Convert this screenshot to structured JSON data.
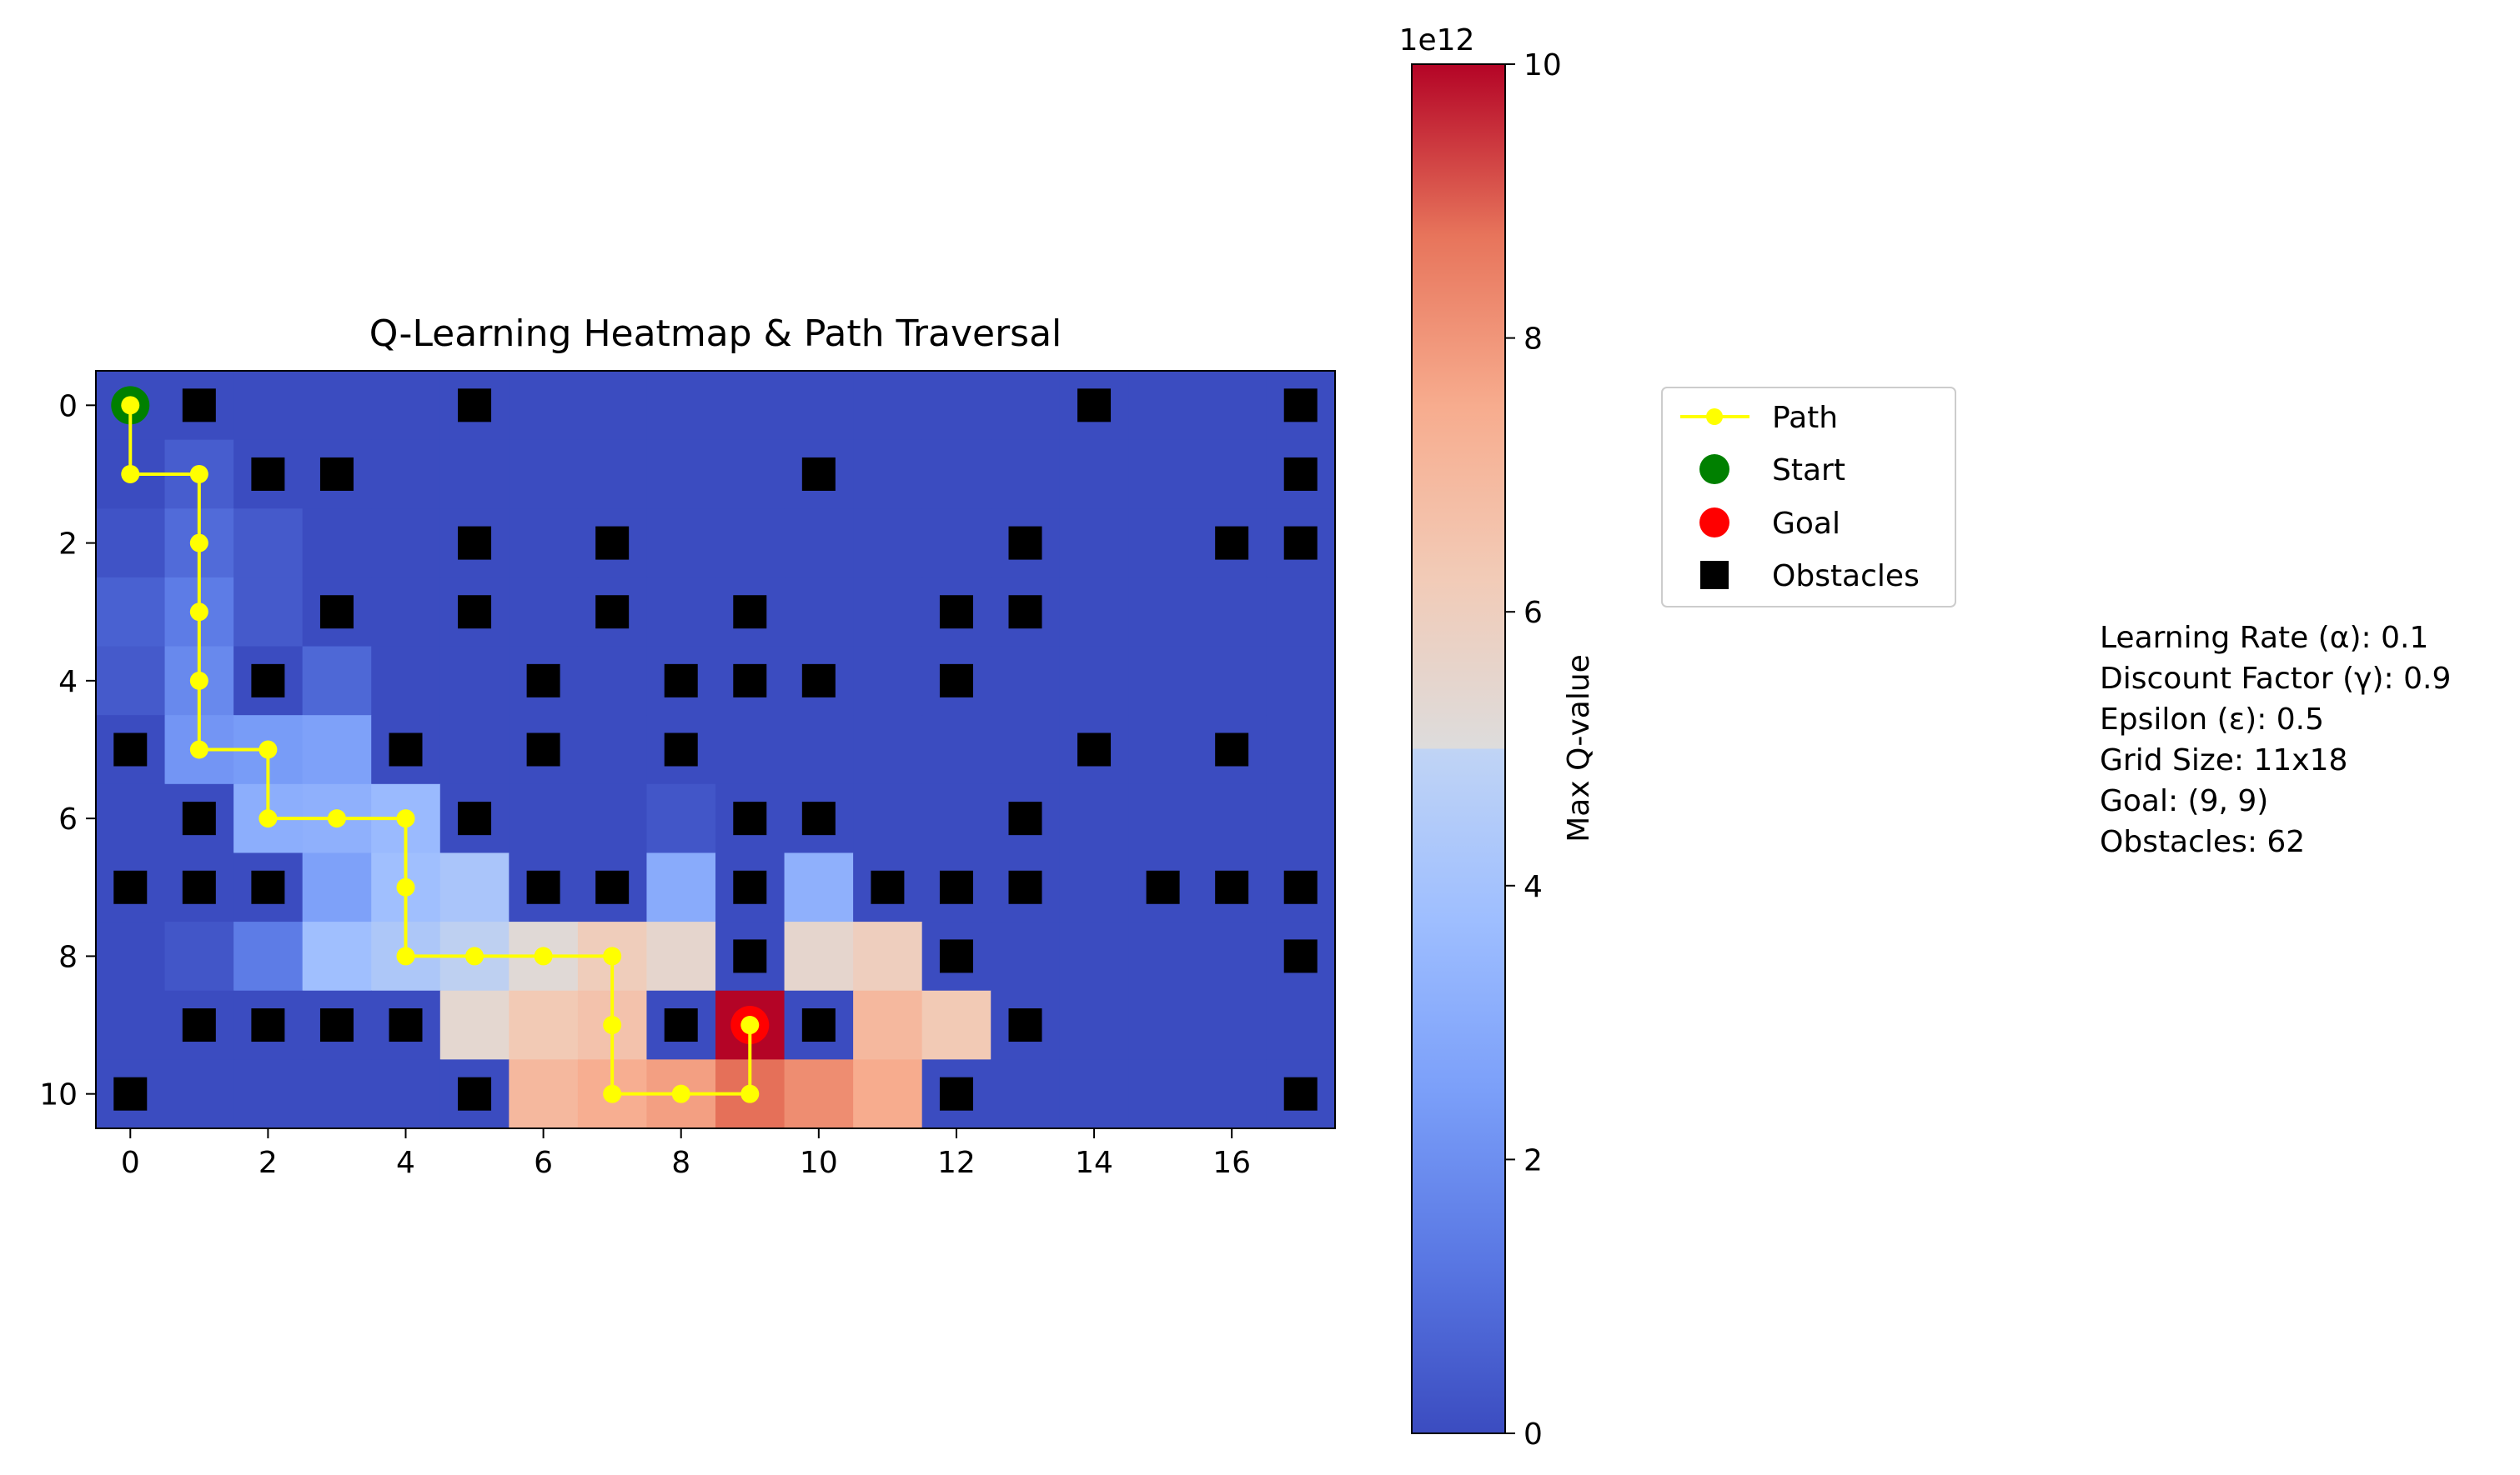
{
  "chart_data": {
    "type": "heatmap",
    "title": "Q-Learning Heatmap & Path Traversal",
    "rows": 11,
    "cols": 18,
    "x_ticks": [
      0,
      2,
      4,
      6,
      8,
      10,
      12,
      14,
      16
    ],
    "y_ticks": [
      0,
      2,
      4,
      6,
      8,
      10
    ],
    "colormap": "coolwarm",
    "colorbar": {
      "label": "Max Q-value",
      "exponent_label": "1e12",
      "min": 0,
      "max": 10,
      "ticks": [
        0,
        2,
        4,
        6,
        8,
        10
      ]
    },
    "q_values_e12": [
      [
        0,
        0,
        0,
        0,
        0,
        0,
        0,
        0,
        0,
        0,
        0,
        0,
        0,
        0,
        0,
        0,
        0,
        0
      ],
      [
        0,
        0.5,
        0,
        0,
        0,
        0,
        0,
        0,
        0,
        0,
        0,
        0,
        0,
        0,
        0,
        0,
        0,
        0
      ],
      [
        0.2,
        0.9,
        0.4,
        0,
        0,
        0,
        0,
        0,
        0,
        0,
        0,
        0,
        0,
        0,
        0,
        0,
        0,
        0
      ],
      [
        0.6,
        1.4,
        0.4,
        0,
        0,
        0,
        0,
        0,
        0,
        0,
        0,
        0,
        0,
        0,
        0,
        0,
        0,
        0
      ],
      [
        0.4,
        1.8,
        0,
        0.8,
        0,
        0,
        0,
        0,
        0,
        0,
        0,
        0,
        0,
        0,
        0,
        0,
        0,
        0
      ],
      [
        0,
        2.2,
        2.4,
        2.6,
        0,
        0,
        0,
        0,
        0,
        0,
        0,
        0,
        0,
        0,
        0,
        0,
        0,
        0
      ],
      [
        0,
        0,
        3.1,
        3.2,
        3.6,
        0,
        0,
        0,
        0.3,
        0,
        0,
        0,
        0,
        0,
        0,
        0,
        0,
        0
      ],
      [
        0,
        0,
        0,
        2.6,
        3.8,
        4.1,
        0,
        0,
        3.0,
        0,
        3.2,
        0,
        0,
        0,
        0,
        0,
        0,
        0
      ],
      [
        0,
        0.3,
        1.4,
        3.8,
        4.2,
        4.7,
        5.2,
        6.1,
        5.5,
        0,
        5.5,
        6.0,
        0,
        0,
        0,
        0,
        0,
        0
      ],
      [
        0,
        0,
        0,
        0,
        0,
        5.4,
        6.3,
        6.6,
        0,
        10,
        0,
        7.0,
        6.3,
        0,
        0,
        0,
        0,
        0
      ],
      [
        0,
        0,
        0,
        0,
        0,
        0,
        7.0,
        7.4,
        7.8,
        8.8,
        8.2,
        7.5,
        0,
        0,
        0,
        0,
        0,
        0
      ]
    ],
    "obstacles": [
      [
        0,
        1
      ],
      [
        0,
        5
      ],
      [
        0,
        14
      ],
      [
        0,
        17
      ],
      [
        1,
        2
      ],
      [
        1,
        3
      ],
      [
        1,
        10
      ],
      [
        1,
        17
      ],
      [
        2,
        5
      ],
      [
        2,
        7
      ],
      [
        2,
        13
      ],
      [
        2,
        16
      ],
      [
        2,
        17
      ],
      [
        3,
        3
      ],
      [
        3,
        5
      ],
      [
        3,
        7
      ],
      [
        3,
        9
      ],
      [
        3,
        12
      ],
      [
        3,
        13
      ],
      [
        4,
        2
      ],
      [
        4,
        6
      ],
      [
        4,
        8
      ],
      [
        4,
        9
      ],
      [
        4,
        10
      ],
      [
        4,
        12
      ],
      [
        5,
        0
      ],
      [
        5,
        4
      ],
      [
        5,
        6
      ],
      [
        5,
        8
      ],
      [
        5,
        14
      ],
      [
        5,
        16
      ],
      [
        6,
        1
      ],
      [
        6,
        5
      ],
      [
        6,
        9
      ],
      [
        6,
        10
      ],
      [
        6,
        13
      ],
      [
        7,
        0
      ],
      [
        7,
        1
      ],
      [
        7,
        2
      ],
      [
        7,
        6
      ],
      [
        7,
        7
      ],
      [
        7,
        9
      ],
      [
        7,
        11
      ],
      [
        7,
        12
      ],
      [
        7,
        13
      ],
      [
        7,
        15
      ],
      [
        7,
        16
      ],
      [
        7,
        17
      ],
      [
        8,
        9
      ],
      [
        8,
        12
      ],
      [
        8,
        17
      ],
      [
        9,
        1
      ],
      [
        9,
        2
      ],
      [
        9,
        3
      ],
      [
        9,
        4
      ],
      [
        9,
        8
      ],
      [
        9,
        10
      ],
      [
        9,
        13
      ],
      [
        10,
        0
      ],
      [
        10,
        5
      ],
      [
        10,
        12
      ],
      [
        10,
        17
      ]
    ],
    "path": [
      [
        0,
        0
      ],
      [
        1,
        0
      ],
      [
        1,
        1
      ],
      [
        2,
        1
      ],
      [
        3,
        1
      ],
      [
        4,
        1
      ],
      [
        5,
        1
      ],
      [
        5,
        2
      ],
      [
        6,
        2
      ],
      [
        6,
        3
      ],
      [
        6,
        4
      ],
      [
        7,
        4
      ],
      [
        8,
        4
      ],
      [
        8,
        5
      ],
      [
        8,
        6
      ],
      [
        8,
        7
      ],
      [
        9,
        7
      ],
      [
        10,
        7
      ],
      [
        10,
        8
      ],
      [
        10,
        9
      ],
      [
        9,
        9
      ]
    ],
    "start": [
      0,
      0
    ],
    "goal": [
      9,
      9
    ],
    "colors": {
      "path": "#ffff00",
      "start": "#008000",
      "goal": "#ff0000",
      "obstacle": "#000000"
    },
    "legend": {
      "placement": "right of colorbar, upper",
      "entries": [
        "Path",
        "Start",
        "Goal",
        "Obstacles"
      ]
    }
  },
  "info": {
    "learning_rate": "Learning Rate (α): 0.1",
    "discount_factor": "Discount Factor (γ): 0.9",
    "epsilon": "Epsilon (ε): 0.5",
    "grid_size": "Grid Size: 11x18",
    "goal": "Goal: (9, 9)",
    "obstacles": "Obstacles: 62"
  }
}
